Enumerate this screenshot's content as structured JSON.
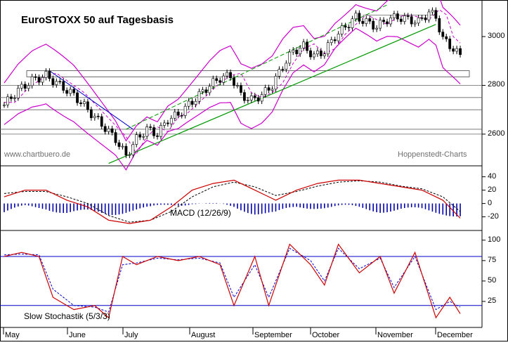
{
  "chart_data": [
    {
      "type": "candlestick",
      "title": "EuroSTOXX 50 auf Tagesbasis",
      "source_left": "www.chartbuero.de",
      "source_right": "Hoppenstedt-Charts",
      "xlabel": "",
      "ylabel": "",
      "x_months": [
        "May",
        "June",
        "July",
        "August",
        "September",
        "October",
        "November",
        "December"
      ],
      "y_ticks": [
        2600,
        2800,
        3000
      ],
      "ylim": [
        2470,
        3150
      ],
      "grid": false,
      "overlays": [
        "Bollinger bands",
        "moving average",
        "trend channel",
        "support/resistance lines"
      ],
      "close_approx": [
        [
          0,
          2720
        ],
        [
          4,
          2780
        ],
        [
          8,
          2820
        ],
        [
          12,
          2840
        ],
        [
          16,
          2800
        ],
        [
          20,
          2760
        ],
        [
          24,
          2700
        ],
        [
          28,
          2640
        ],
        [
          32,
          2580
        ],
        [
          35,
          2510
        ],
        [
          38,
          2580
        ],
        [
          41,
          2620
        ],
        [
          44,
          2600
        ],
        [
          47,
          2660
        ],
        [
          50,
          2680
        ],
        [
          53,
          2720
        ],
        [
          56,
          2760
        ],
        [
          59,
          2800
        ],
        [
          62,
          2830
        ],
        [
          65,
          2840
        ],
        [
          68,
          2760
        ],
        [
          71,
          2740
        ],
        [
          74,
          2760
        ],
        [
          77,
          2800
        ],
        [
          80,
          2880
        ],
        [
          83,
          2940
        ],
        [
          86,
          2960
        ],
        [
          89,
          2920
        ],
        [
          92,
          2940
        ],
        [
          95,
          3000
        ],
        [
          98,
          3040
        ],
        [
          101,
          3080
        ],
        [
          104,
          3060
        ],
        [
          107,
          3040
        ],
        [
          110,
          3070
        ],
        [
          113,
          3080
        ],
        [
          116,
          3070
        ],
        [
          119,
          3060
        ],
        [
          122,
          3100
        ],
        [
          124,
          3080
        ],
        [
          126,
          2990
        ],
        [
          129,
          2950
        ],
        [
          131,
          2920
        ]
      ]
    },
    {
      "type": "line",
      "label": "MACD (12/26/9)",
      "y_ticks": [
        40,
        20,
        0,
        -20
      ],
      "ylim": [
        -32,
        48
      ],
      "series": [
        {
          "values": [
            [
              0,
              10
            ],
            [
              6,
              20
            ],
            [
              12,
              20
            ],
            [
              18,
              5
            ],
            [
              24,
              -5
            ],
            [
              30,
              -25
            ],
            [
              36,
              -30
            ],
            [
              42,
              -25
            ],
            [
              48,
              -5
            ],
            [
              54,
              20
            ],
            [
              60,
              30
            ],
            [
              66,
              35
            ],
            [
              72,
              20
            ],
            [
              78,
              5
            ],
            [
              84,
              20
            ],
            [
              90,
              30
            ],
            [
              96,
              35
            ],
            [
              102,
              35
            ],
            [
              108,
              30
            ],
            [
              114,
              25
            ],
            [
              120,
              20
            ],
            [
              126,
              5
            ],
            [
              131,
              -22
            ]
          ]
        },
        {
          "values": [
            [
              0,
              15
            ],
            [
              6,
              18
            ],
            [
              12,
              18
            ],
            [
              18,
              10
            ],
            [
              24,
              0
            ],
            [
              30,
              -18
            ],
            [
              36,
              -28
            ],
            [
              42,
              -25
            ],
            [
              48,
              -12
            ],
            [
              54,
              10
            ],
            [
              60,
              25
            ],
            [
              66,
              32
            ],
            [
              72,
              25
            ],
            [
              78,
              12
            ],
            [
              84,
              18
            ],
            [
              90,
              26
            ],
            [
              96,
              32
            ],
            [
              102,
              34
            ],
            [
              108,
              32
            ],
            [
              114,
              26
            ],
            [
              120,
              22
            ],
            [
              126,
              10
            ],
            [
              131,
              -12
            ]
          ]
        }
      ]
    },
    {
      "type": "line",
      "label": "Slow Stochastik (5/3/3)",
      "y_ticks": [
        100,
        75,
        50,
        25
      ],
      "reference_lines": [
        80,
        20
      ],
      "ylim": [
        0,
        105
      ],
      "series": [
        {
          "values": [
            [
              0,
              80
            ],
            [
              5,
              85
            ],
            [
              10,
              80
            ],
            [
              14,
              30
            ],
            [
              20,
              15
            ],
            [
              26,
              20
            ],
            [
              30,
              5
            ],
            [
              34,
              80
            ],
            [
              38,
              70
            ],
            [
              44,
              80
            ],
            [
              50,
              75
            ],
            [
              56,
              80
            ],
            [
              62,
              70
            ],
            [
              66,
              20
            ],
            [
              72,
              80
            ],
            [
              76,
              20
            ],
            [
              82,
              95
            ],
            [
              88,
              70
            ],
            [
              92,
              45
            ],
            [
              96,
              95
            ],
            [
              102,
              60
            ],
            [
              108,
              80
            ],
            [
              112,
              35
            ],
            [
              118,
              85
            ],
            [
              124,
              5
            ],
            [
              128,
              30
            ],
            [
              131,
              10
            ]
          ]
        },
        {
          "values": [
            [
              0,
              82
            ],
            [
              5,
              83
            ],
            [
              10,
              82
            ],
            [
              14,
              40
            ],
            [
              20,
              20
            ],
            [
              26,
              18
            ],
            [
              30,
              12
            ],
            [
              34,
              70
            ],
            [
              38,
              72
            ],
            [
              44,
              78
            ],
            [
              50,
              76
            ],
            [
              56,
              78
            ],
            [
              62,
              72
            ],
            [
              66,
              30
            ],
            [
              72,
              70
            ],
            [
              76,
              30
            ],
            [
              82,
              90
            ],
            [
              88,
              75
            ],
            [
              92,
              50
            ],
            [
              96,
              90
            ],
            [
              102,
              65
            ],
            [
              108,
              78
            ],
            [
              112,
              42
            ],
            [
              118,
              80
            ],
            [
              124,
              15
            ],
            [
              128,
              25
            ],
            [
              131,
              18
            ]
          ]
        }
      ]
    }
  ]
}
